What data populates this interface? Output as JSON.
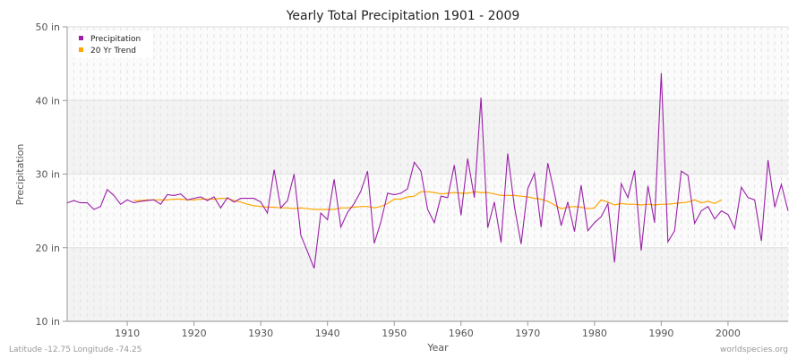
{
  "chart_data": {
    "type": "line",
    "title": "Yearly Total Precipitation 1901 - 2009",
    "xlabel": "Year",
    "ylabel": "Precipitation",
    "xlim": [
      1901,
      2009
    ],
    "ylim": [
      10,
      50
    ],
    "yticks": [
      10,
      20,
      30,
      40,
      50
    ],
    "ytick_labels": [
      "10 in",
      "20 in",
      "30 in",
      "40 in",
      "50 in"
    ],
    "xticks": [
      1910,
      1920,
      1930,
      1940,
      1950,
      1960,
      1970,
      1980,
      1990,
      2000
    ],
    "grid": true,
    "legend_position": "top-left",
    "series": [
      {
        "name": "Precipitation",
        "color": "#9b1fa8",
        "x_start": 1901,
        "values": [
          26.1,
          26.4,
          26.1,
          26.1,
          25.2,
          25.6,
          27.9,
          27.1,
          25.9,
          26.5,
          26.1,
          26.3,
          26.4,
          26.5,
          25.9,
          27.2,
          27.1,
          27.3,
          26.5,
          26.7,
          26.9,
          26.4,
          26.9,
          25.4,
          26.8,
          26.2,
          26.7,
          26.7,
          26.7,
          26.2,
          24.7,
          30.6,
          25.4,
          26.4,
          30.0,
          21.7,
          19.5,
          17.2,
          24.7,
          23.8,
          29.3,
          22.8,
          24.8,
          26.0,
          27.7,
          30.4,
          20.6,
          23.5,
          27.4,
          27.2,
          27.4,
          28.0,
          31.6,
          30.4,
          25.2,
          23.4,
          27.0,
          26.8,
          31.2,
          24.4,
          32.1,
          26.8,
          40.4,
          22.7,
          26.2,
          20.7,
          32.8,
          25.6,
          20.5,
          28.0,
          30.1,
          22.8,
          31.5,
          27.4,
          23.0,
          26.2,
          22.2,
          28.5,
          22.3,
          23.4,
          24.2,
          26.0,
          18.0,
          28.7,
          26.8,
          30.5,
          19.6,
          28.4,
          23.4,
          43.7,
          20.8,
          22.3,
          30.4,
          29.8,
          23.3,
          25.0,
          25.6,
          23.9,
          25.0,
          24.5,
          22.6,
          28.2,
          26.8,
          26.5,
          20.9,
          31.9,
          25.5,
          28.6,
          25.0
        ]
      },
      {
        "name": "20 Yr Trend",
        "color": "#ffa500",
        "x_start": 1911,
        "values": [
          26.4,
          26.4,
          26.5,
          26.5,
          26.5,
          26.5,
          26.6,
          26.6,
          26.5,
          26.5,
          26.6,
          26.6,
          26.6,
          26.7,
          26.7,
          26.4,
          26.2,
          25.9,
          25.7,
          25.6,
          25.5,
          25.5,
          25.4,
          25.4,
          25.3,
          25.4,
          25.3,
          25.2,
          25.2,
          25.2,
          25.2,
          25.4,
          25.4,
          25.5,
          25.6,
          25.6,
          25.4,
          25.6,
          26.0,
          26.6,
          26.6,
          26.9,
          27.0,
          27.6,
          27.6,
          27.5,
          27.3,
          27.4,
          27.5,
          27.4,
          27.4,
          27.6,
          27.5,
          27.5,
          27.3,
          27.1,
          27.1,
          27.1,
          27.0,
          26.9,
          26.7,
          26.6,
          26.3,
          25.8,
          25.3,
          25.5,
          25.6,
          25.5,
          25.3,
          25.4,
          26.5,
          26.2,
          25.8,
          26.0,
          25.9,
          25.9,
          25.8,
          25.9,
          25.8,
          25.9,
          25.9,
          26.0,
          26.1,
          26.2,
          26.5,
          26.1,
          26.3,
          26.0,
          26.5
        ]
      }
    ]
  },
  "footer": {
    "location": "Latitude -12.75 Longitude -74.25",
    "source": "worldspecies.org"
  }
}
